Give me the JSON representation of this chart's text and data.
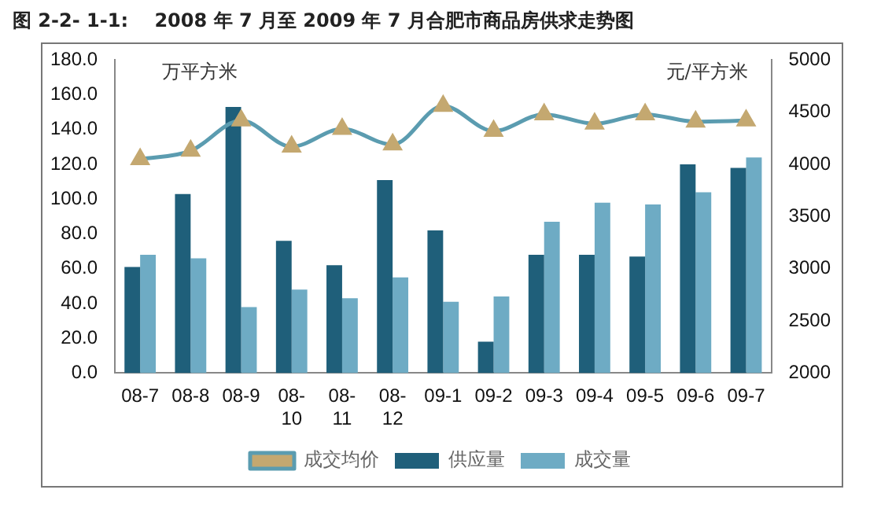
{
  "chart_data": {
    "type": "bar",
    "title": "图 2-2- 1-1:    2008 年 7 月至 2009 年 7 月合肥市商品房供求走势图",
    "ylabel": "万平方米",
    "y2label": "元/平方米",
    "categories": [
      "08-7",
      "08-8",
      "08-9",
      "08-10",
      "08-11",
      "08-12",
      "09-1",
      "09-2",
      "09-3",
      "09-4",
      "09-5",
      "09-6",
      "09-7"
    ],
    "series": [
      {
        "name": "供应量",
        "color": "#1f5f7a",
        "values": [
          61,
          103,
          153,
          76,
          62,
          111,
          82,
          18,
          68,
          68,
          67,
          120,
          118
        ]
      },
      {
        "name": "成交量",
        "color": "#6eabc4",
        "values": [
          68,
          66,
          38,
          48,
          43,
          55,
          41,
          44,
          87,
          98,
          97,
          104,
          124
        ]
      },
      {
        "name": "成交均价",
        "type": "line",
        "axis": "y2",
        "color": "#5b9cb0",
        "marker": "triangle",
        "values": [
          4050,
          4130,
          4420,
          4170,
          4340,
          4190,
          4560,
          4320,
          4480,
          4390,
          4480,
          4410,
          4420
        ]
      }
    ],
    "ylim": [
      0,
      180
    ],
    "yticks": [
      {
        "value": 0,
        "label": "0.0"
      },
      {
        "value": 20,
        "label": "20.0"
      },
      {
        "value": 40,
        "label": "40.0"
      },
      {
        "value": 60,
        "label": "60.0"
      },
      {
        "value": 80,
        "label": "80.0"
      },
      {
        "value": 100,
        "label": "100.0"
      },
      {
        "value": 120,
        "label": "120.0"
      },
      {
        "value": 140,
        "label": "140.0"
      },
      {
        "value": 160,
        "label": "160.0"
      },
      {
        "value": 180,
        "label": "180.0"
      }
    ],
    "y2lim": [
      2000,
      5000
    ],
    "y2ticks": [
      2000,
      2500,
      3000,
      3500,
      4000,
      4500,
      5000
    ],
    "grid": false,
    "legend": "bottom"
  }
}
